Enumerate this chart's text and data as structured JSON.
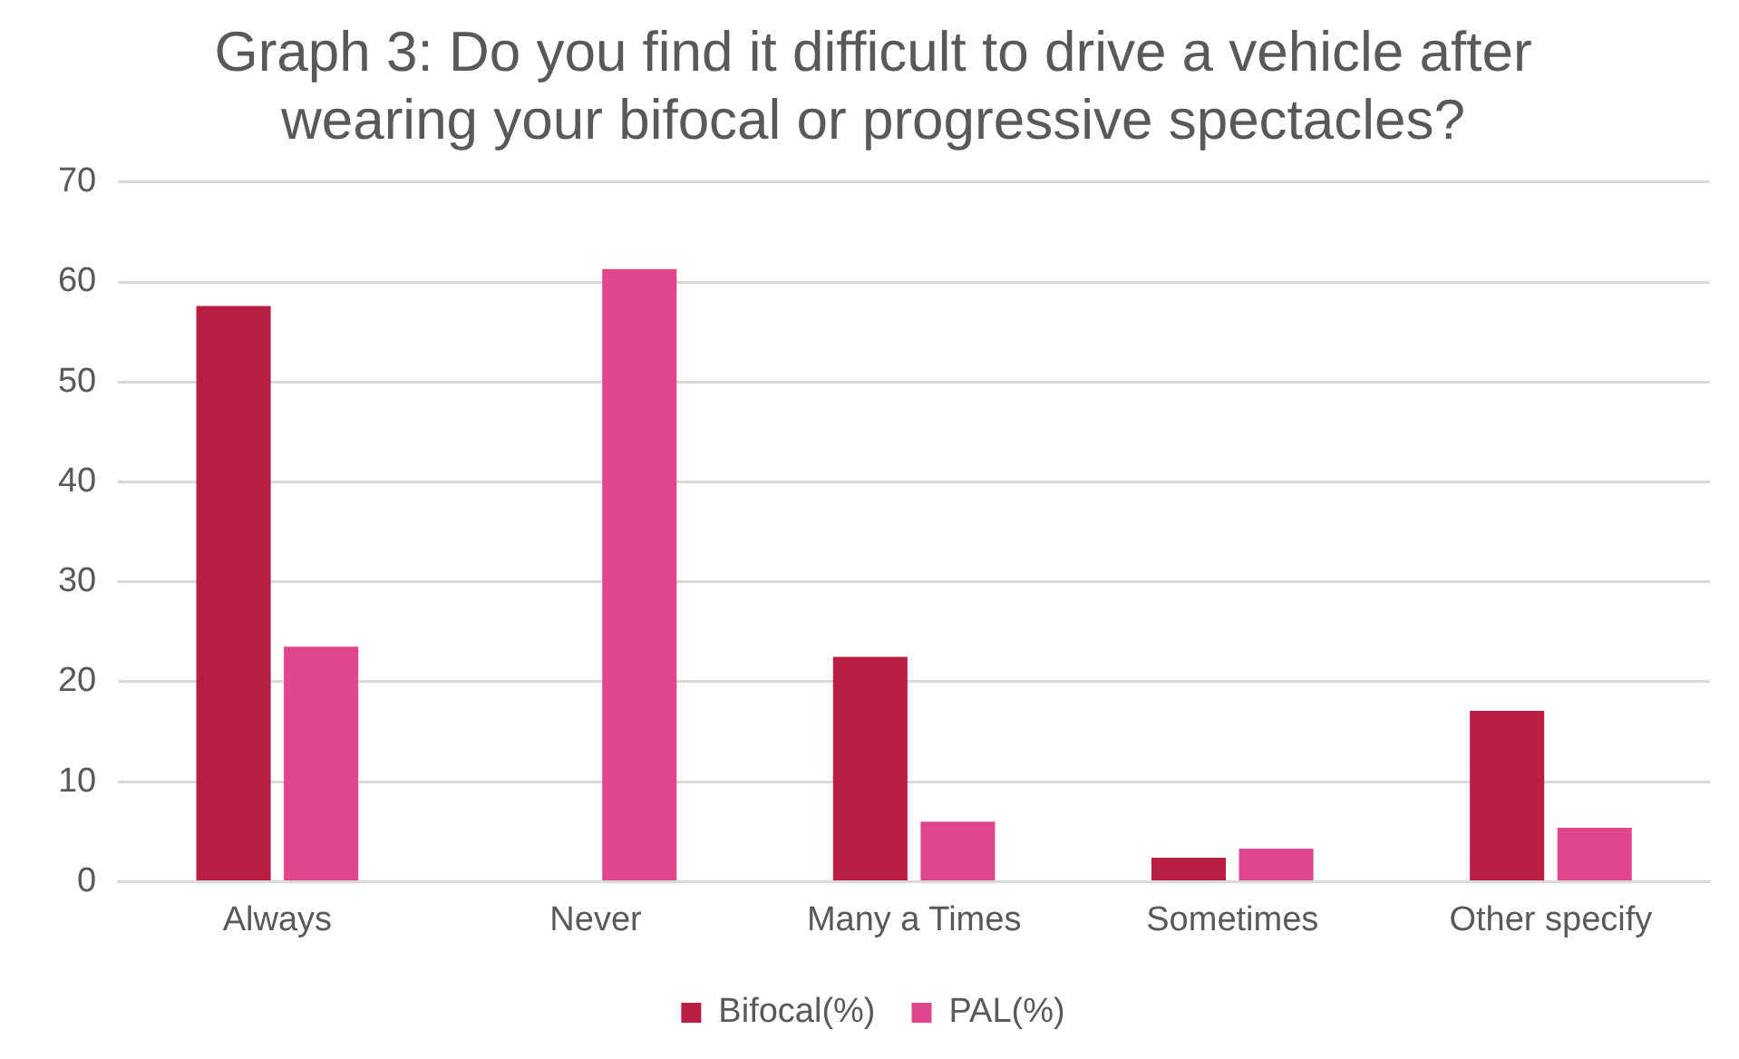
{
  "chart_data": {
    "type": "bar",
    "title": "Graph 3: Do you find it difficult to drive a vehicle after wearing your bifocal or progressive spectacles?",
    "categories": [
      "Always",
      "Never",
      "Many a Times",
      "Sometimes",
      "Other specify"
    ],
    "series": [
      {
        "name": "Bifocal(%)",
        "color": "#b71e42",
        "values": [
          57.6,
          0,
          22.5,
          2.4,
          17.1
        ]
      },
      {
        "name": "PAL(%)",
        "color": "#df468c",
        "values": [
          23.5,
          61.3,
          6.0,
          3.3,
          5.4
        ]
      }
    ],
    "ylim": [
      0,
      70
    ],
    "yticks": [
      0,
      10,
      20,
      30,
      40,
      50,
      60,
      70
    ],
    "grid": "y",
    "legend": "bottom"
  }
}
